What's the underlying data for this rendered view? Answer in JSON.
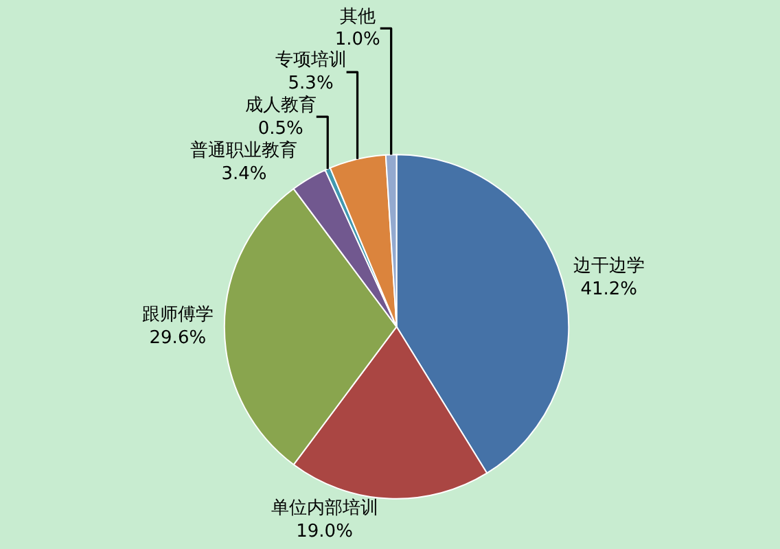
{
  "chart_data": {
    "type": "pie",
    "categories": [
      "边干边学",
      "单位内部培训",
      "跟师傅学",
      "普通职业教育",
      "成人教育",
      "专项培训",
      "其他"
    ],
    "values": [
      41.2,
      19.0,
      29.6,
      3.4,
      0.5,
      5.3,
      1.0
    ],
    "value_labels": [
      "41.2%",
      "19.0%",
      "29.6%",
      "3.4%",
      "0.5%",
      "5.3%",
      "1.0%"
    ],
    "colors": [
      "#4572a7",
      "#aa4643",
      "#89a54e",
      "#71588f",
      "#4198af",
      "#db843d",
      "#93a9cf"
    ],
    "legend": false
  }
}
